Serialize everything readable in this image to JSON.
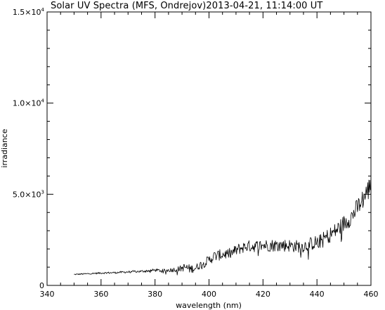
{
  "chart_data": {
    "type": "line",
    "title": "Solar UV Spectra (MFS, Ondrejov)2013-04-21, 11:14:00 UT",
    "xlabel": "wavelength (nm)",
    "ylabel": "irradiance",
    "xlim": [
      340,
      460
    ],
    "ylim": [
      0,
      15000
    ],
    "x_ticks": [
      340,
      360,
      380,
      400,
      420,
      440,
      460
    ],
    "y_ticks": [
      {
        "value": 0,
        "mant": "0",
        "exp": ""
      },
      {
        "value": 5000,
        "mant": "5.0×10",
        "exp": "3"
      },
      {
        "value": 10000,
        "mant": "1.0×10",
        "exp": "4"
      },
      {
        "value": 15000,
        "mant": "1.5×10",
        "exp": "4"
      }
    ],
    "grid": false,
    "series": [
      {
        "x": [
          350,
          355,
          360,
          365,
          370,
          375,
          380,
          383,
          386,
          389,
          391,
          393,
          395,
          397,
          399,
          402,
          405,
          408,
          411,
          414,
          417,
          420,
          423,
          426,
          429,
          432,
          435,
          438,
          441,
          444,
          447,
          450,
          453,
          456,
          458,
          460
        ],
        "y": [
          600,
          640,
          680,
          700,
          740,
          770,
          840,
          800,
          850,
          900,
          1000,
          900,
          950,
          1150,
          1300,
          1600,
          1700,
          1750,
          2000,
          2150,
          2150,
          2200,
          2200,
          2200,
          2200,
          2150,
          2150,
          2300,
          2400,
          2700,
          3000,
          3400,
          3800,
          4500,
          5000,
          5500
        ],
        "noise": [
          30,
          40,
          50,
          50,
          60,
          70,
          80,
          90,
          120,
          160,
          220,
          250,
          200,
          220,
          250,
          300,
          300,
          300,
          320,
          320,
          330,
          340,
          350,
          350,
          360,
          350,
          350,
          380,
          400,
          420,
          450,
          480,
          500,
          550,
          600,
          600
        ]
      }
    ]
  }
}
